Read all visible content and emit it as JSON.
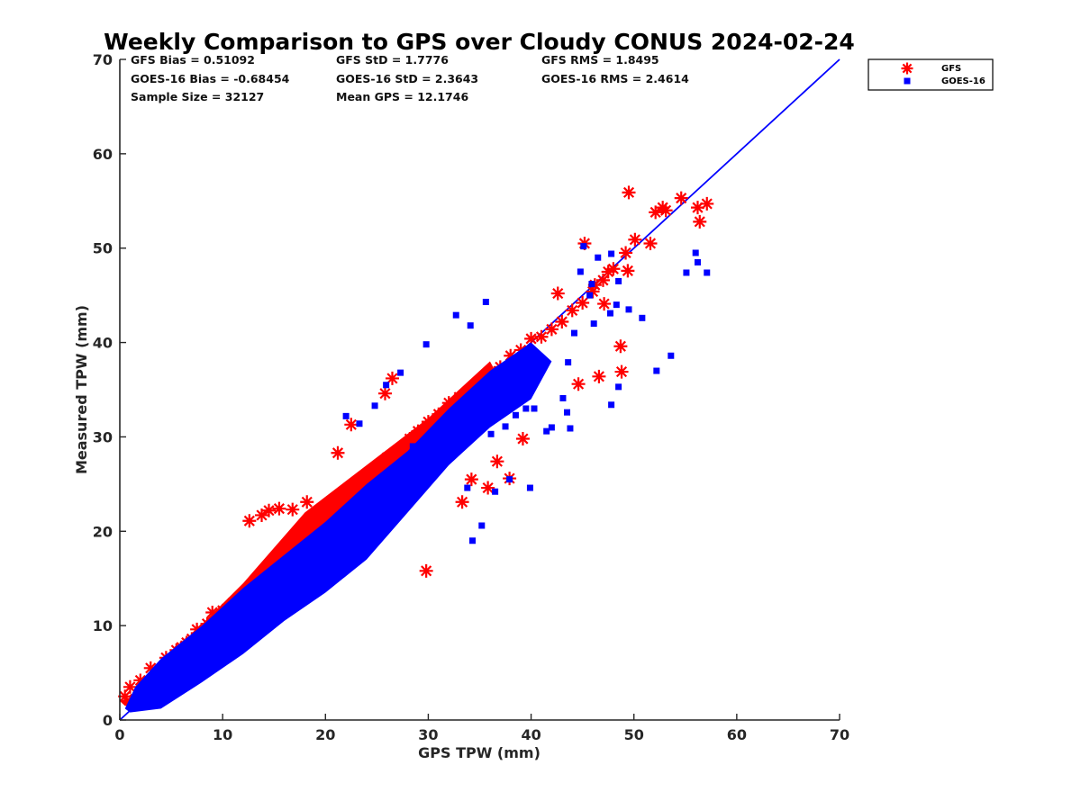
{
  "chart_data": {
    "type": "scatter",
    "title": "Weekly Comparison to GPS over Cloudy CONUS 2024-02-24",
    "xlabel": "GPS TPW (mm)",
    "ylabel": "Measured TPW (mm)",
    "xlim": [
      0,
      70
    ],
    "ylim": [
      0,
      70
    ],
    "xticks": [
      "0",
      "10",
      "20",
      "30",
      "40",
      "50",
      "60",
      "70"
    ],
    "yticks": [
      "0",
      "10",
      "20",
      "30",
      "40",
      "50",
      "60",
      "70"
    ],
    "grid": false,
    "legend_position": "outside top-right",
    "stats": [
      [
        "GFS Bias = 0.51092",
        "GFS StD = 1.7776",
        "GFS RMS = 1.8495"
      ],
      [
        "GOES-16 Bias = -0.68454",
        "GOES-16 StD = 2.3643",
        "GOES-16 RMS = 2.4614"
      ],
      [
        "Sample Size = 32127",
        "Mean GPS = 12.1746",
        ""
      ]
    ],
    "reference_line": {
      "x": [
        0,
        70
      ],
      "y": [
        0,
        70
      ],
      "color": "#0000ff"
    },
    "series": [
      {
        "name": "GFS",
        "marker": "asterisk",
        "color": "#ff0000",
        "x": [
          0.5,
          1,
          1.5,
          2,
          2.5,
          3,
          3.5,
          4,
          4.5,
          5,
          5.5,
          6,
          6.5,
          7,
          7.5,
          8,
          8.5,
          9,
          9.5,
          10,
          11,
          12,
          13,
          14,
          15,
          16,
          17,
          18,
          19,
          20,
          21,
          22,
          23,
          24,
          25,
          26,
          27,
          28,
          29,
          30,
          31,
          32,
          33,
          34,
          35,
          36,
          37,
          38,
          39,
          40,
          41,
          42,
          43,
          44,
          45,
          46,
          47,
          48,
          12.6,
          13.8,
          14.5,
          15.5,
          16.8,
          18.2,
          21.2,
          22.5,
          25.8,
          26.5,
          29.8,
          28.2,
          33.3,
          34.2,
          35.8,
          37.9,
          36.7,
          39.2,
          44.6,
          46.6,
          48.8,
          48.7,
          42.6,
          45.2,
          46.2,
          47.5,
          49.2,
          49.5,
          50.1,
          52.1,
          52.8,
          53.1,
          54.6,
          56.2,
          57.1,
          56.4,
          47.1,
          49.4,
          51.6
        ],
        "y": [
          2.5,
          3.5,
          2.2,
          4.2,
          3.8,
          5.5,
          4.4,
          5,
          6.6,
          6.2,
          7.4,
          7.7,
          8.2,
          8.6,
          9.6,
          9.4,
          10.2,
          11.4,
          10.8,
          11.6,
          12.4,
          13.4,
          14.2,
          15.8,
          16.4,
          17.6,
          18.4,
          19.6,
          20.4,
          21.6,
          22.6,
          23.8,
          24.6,
          25.4,
          26.6,
          27.8,
          28.5,
          29.4,
          30.6,
          31.6,
          32.4,
          33.6,
          34.2,
          34.8,
          35.6,
          36.2,
          37.4,
          38.6,
          39.2,
          40.4,
          40.6,
          41.4,
          42.2,
          43.4,
          44.2,
          45.4,
          46.6,
          47.8,
          21.1,
          21.7,
          22.2,
          22.4,
          22.3,
          23.1,
          28.3,
          31.3,
          34.6,
          36.2,
          15.8,
          29.8,
          23.1,
          25.5,
          24.6,
          25.6,
          27.4,
          29.8,
          35.6,
          36.4,
          36.9,
          39.6,
          45.2,
          50.5,
          46.1,
          47.5,
          49.5,
          55.9,
          50.9,
          53.8,
          54.3,
          54.0,
          55.3,
          54.3,
          54.7,
          52.8,
          44.1,
          47.6,
          50.5
        ]
      },
      {
        "name": "GOES-16",
        "marker": "square",
        "color": "#0000ff",
        "x": [
          34.3,
          35.2,
          36.5,
          37.9,
          39.9,
          43.5,
          47.8,
          48.5,
          52.2,
          53.6,
          55.1,
          56.2,
          57.1,
          56.0,
          45.7,
          45.1,
          44.8,
          48.5,
          49.5,
          50.8,
          44.2,
          46.1,
          47.7,
          48.3,
          32.7,
          29.8,
          34.1,
          35.6,
          46.5,
          47.8,
          43.6,
          43.1,
          40.3,
          28.5,
          22.0,
          23.3,
          24.8,
          25.9,
          27.3,
          36.1,
          37.5,
          38.5,
          39.5,
          41.5,
          33.8,
          42.0,
          43.8,
          45.9
        ],
        "y": [
          19.0,
          20.6,
          24.2,
          25.5,
          24.6,
          32.6,
          33.4,
          35.3,
          37.0,
          38.6,
          47.4,
          48.5,
          47.4,
          49.5,
          45.0,
          50.2,
          47.5,
          46.5,
          43.5,
          42.6,
          41.0,
          42.0,
          43.1,
          44.0,
          42.9,
          39.8,
          41.8,
          44.3,
          49.0,
          49.4,
          37.9,
          34.1,
          33.0,
          29.0,
          32.2,
          31.4,
          33.3,
          35.5,
          36.8,
          30.3,
          31.1,
          32.3,
          33.0,
          30.6,
          24.6,
          31.0,
          30.9,
          46.2
        ]
      }
    ]
  }
}
